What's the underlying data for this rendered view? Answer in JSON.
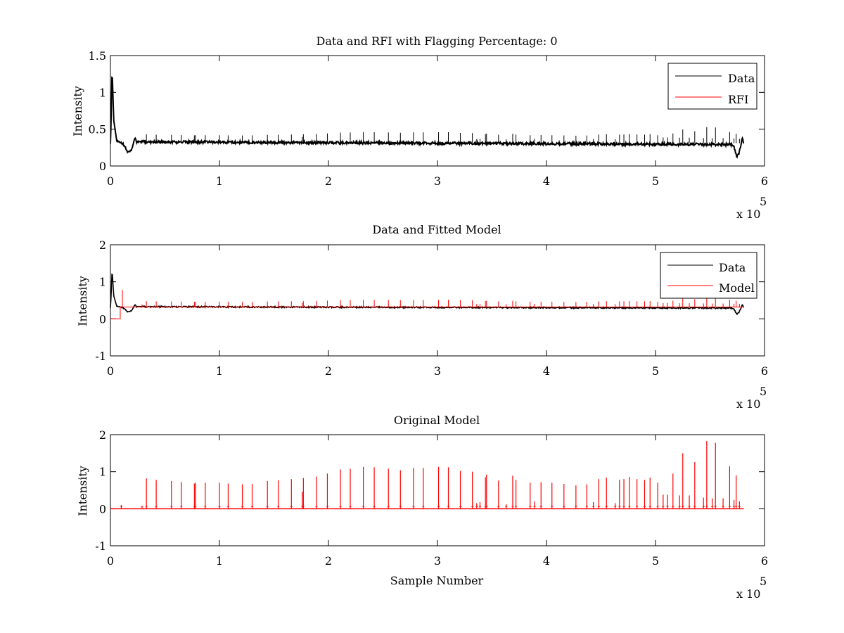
{
  "chart_data": [
    {
      "type": "line",
      "title": "Data and RFI with Flagging Percentage: 0",
      "xlabel": "",
      "ylabel": "Intensity",
      "xlim": [
        0,
        600000
      ],
      "ylim": [
        0,
        1.5
      ],
      "xticks": [
        "0",
        "1",
        "2",
        "3",
        "4",
        "5",
        "6"
      ],
      "yticks": [
        "0",
        "0.5",
        "1",
        "1.5"
      ],
      "x_exponent": {
        "base": "x 10",
        "power": "5"
      },
      "legend": {
        "placement": "top-right",
        "entries": [
          {
            "label": "Data",
            "color": "#000000"
          },
          {
            "label": "RFI",
            "color": "#ff0000"
          }
        ]
      },
      "baseline": 0.3,
      "series": [
        {
          "name": "Data",
          "color": "#000000",
          "kind": "data",
          "spikes_on_top": true
        }
      ],
      "features": {
        "onset_peak": [
          1500,
          1.33
        ],
        "dip_start": [
          17000,
          0.18
        ],
        "dip_end": [
          575000,
          0.14
        ],
        "end_point": [
          581000,
          0.3
        ]
      }
    },
    {
      "type": "line",
      "title": "Data and Fitted Model",
      "xlabel": "",
      "ylabel": "Intensity",
      "xlim": [
        0,
        600000
      ],
      "ylim": [
        -1,
        2
      ],
      "xticks": [
        "0",
        "1",
        "2",
        "3",
        "4",
        "5",
        "6"
      ],
      "yticks": [
        "-1",
        "0",
        "1",
        "2"
      ],
      "x_exponent": {
        "base": "x 10",
        "power": "5"
      },
      "legend": {
        "placement": "top-right",
        "entries": [
          {
            "label": "Data",
            "color": "#000000"
          },
          {
            "label": "Model",
            "color": "#ff0000"
          }
        ]
      },
      "series": [
        {
          "name": "Data",
          "color": "#000000",
          "kind": "data"
        },
        {
          "name": "Model",
          "color": "#ff0000",
          "kind": "model",
          "start_level": 0,
          "step_at": 9000,
          "level": 0.32
        }
      ]
    },
    {
      "type": "line",
      "title": "Original Model",
      "xlabel": "Sample Number",
      "ylabel": "Intensity",
      "xlim": [
        0,
        600000
      ],
      "ylim": [
        -1,
        2
      ],
      "xticks": [
        "0",
        "1",
        "2",
        "3",
        "4",
        "5",
        "6"
      ],
      "yticks": [
        "-1",
        "0",
        "1",
        "2"
      ],
      "x_exponent": {
        "base": "x 10",
        "power": "5"
      },
      "series": [
        {
          "name": "Original Model",
          "color": "#ff0000",
          "kind": "spikes",
          "baseline": 0,
          "x_end": 581000
        }
      ],
      "spikes": [
        [
          10000,
          0.1
        ],
        [
          29000,
          0.07
        ],
        [
          33000,
          0.82
        ],
        [
          42000,
          0.78
        ],
        [
          56000,
          0.75
        ],
        [
          65000,
          0.72
        ],
        [
          77000,
          0.68
        ],
        [
          78000,
          0.7
        ],
        [
          87000,
          0.7
        ],
        [
          100000,
          0.7
        ],
        [
          108000,
          0.68
        ],
        [
          121000,
          0.66
        ],
        [
          130000,
          0.67
        ],
        [
          144000,
          0.75
        ],
        [
          154000,
          0.77
        ],
        [
          166000,
          0.8
        ],
        [
          176000,
          0.46
        ],
        [
          177000,
          0.83
        ],
        [
          189000,
          0.87
        ],
        [
          199000,
          0.95
        ],
        [
          211000,
          1.06
        ],
        [
          220000,
          1.08
        ],
        [
          232000,
          1.13
        ],
        [
          242000,
          1.12
        ],
        [
          255000,
          1.08
        ],
        [
          266000,
          1.04
        ],
        [
          278000,
          1.1
        ],
        [
          287000,
          1.1
        ],
        [
          301000,
          1.13
        ],
        [
          310000,
          1.12
        ],
        [
          321000,
          1.02
        ],
        [
          332000,
          1.0
        ],
        [
          336000,
          0.15
        ],
        [
          339000,
          0.18
        ],
        [
          344000,
          0.85
        ],
        [
          345000,
          0.92
        ],
        [
          356000,
          0.76
        ],
        [
          363000,
          0.12
        ],
        [
          369000,
          0.89
        ],
        [
          372000,
          0.78
        ],
        [
          385000,
          0.7
        ],
        [
          389000,
          0.2
        ],
        [
          395000,
          0.72
        ],
        [
          405000,
          0.7
        ],
        [
          416000,
          0.67
        ],
        [
          427000,
          0.63
        ],
        [
          437000,
          0.66
        ],
        [
          443000,
          0.18
        ],
        [
          448000,
          0.8
        ],
        [
          455000,
          0.84
        ],
        [
          463000,
          0.15
        ],
        [
          467000,
          0.78
        ],
        [
          471000,
          0.8
        ],
        [
          476000,
          0.86
        ],
        [
          483000,
          0.8
        ],
        [
          490000,
          0.78
        ],
        [
          495000,
          0.84
        ],
        [
          502000,
          0.7
        ],
        [
          507000,
          0.38
        ],
        [
          511000,
          0.38
        ],
        [
          516000,
          0.95
        ],
        [
          522000,
          0.36
        ],
        [
          525000,
          1.5
        ],
        [
          531000,
          0.36
        ],
        [
          536000,
          1.26
        ],
        [
          544000,
          0.3
        ],
        [
          547000,
          1.83
        ],
        [
          552000,
          0.28
        ],
        [
          555000,
          1.78
        ],
        [
          562000,
          0.28
        ],
        [
          568000,
          1.15
        ],
        [
          572000,
          0.24
        ],
        [
          574000,
          0.9
        ],
        [
          577000,
          0.2
        ]
      ]
    }
  ]
}
